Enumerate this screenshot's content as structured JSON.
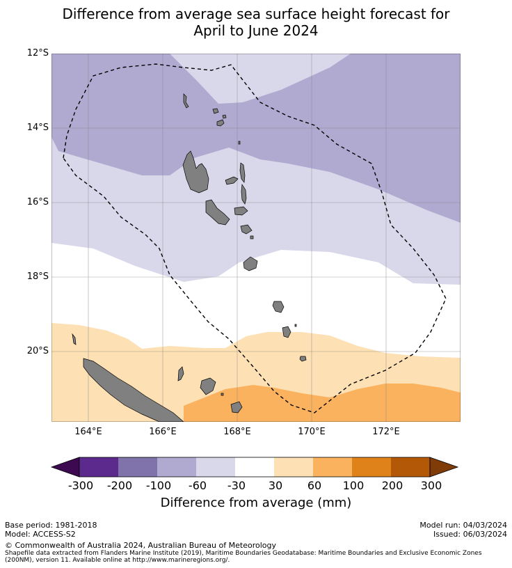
{
  "title": "Difference from average sea surface height forecast for April to June 2024",
  "title_line1": "Difference from average sea surface height forecast for",
  "title_line2": "April to June 2024",
  "map": {
    "lat_labels": [
      "12°S",
      "14°S",
      "16°S",
      "18°S",
      "20°S"
    ],
    "lon_labels": [
      "164°E",
      "166°E",
      "168°E",
      "170°E",
      "172°E"
    ],
    "region": "Vanuatu EEZ",
    "colors": {
      "very_high_negative": "#b0aad1",
      "low_negative": "#d8d8ea",
      "low_positive": "#fde0b4",
      "mid_positive": "#fbb25e",
      "land": "#808080",
      "grid": "#808080"
    }
  },
  "colorbar": {
    "labels": [
      "-300",
      "-200",
      "-100",
      "-60",
      "-30",
      "30",
      "60",
      "100",
      "200",
      "300"
    ],
    "colors": [
      "#3d0a52",
      "#5c2a8c",
      "#8073ab",
      "#b0aad1",
      "#d8d8ea",
      "#ffffff",
      "#fde0b4",
      "#fbb25e",
      "#e0821a",
      "#b35806",
      "#7f3b08"
    ],
    "title": "Difference from average (mm)"
  },
  "footer": {
    "base_period": "Base period: 1981-2018",
    "model": "Model: ACCESS-S2",
    "model_run": "Model run: 04/03/2024",
    "issued": "Issued: 06/03/2024",
    "copyright": "© Commonwealth of Australia 2024, Australian Bureau of Meteorology",
    "shapefile_1": "Shapefile data extracted from Flanders Marine Institute (2019), Maritime Boundaries Geodatabase: Maritime Boundaries and Exclusive Economic Zones",
    "shapefile_2": "(200NM), version 11. Available online at http://www.marineregions.org/."
  }
}
